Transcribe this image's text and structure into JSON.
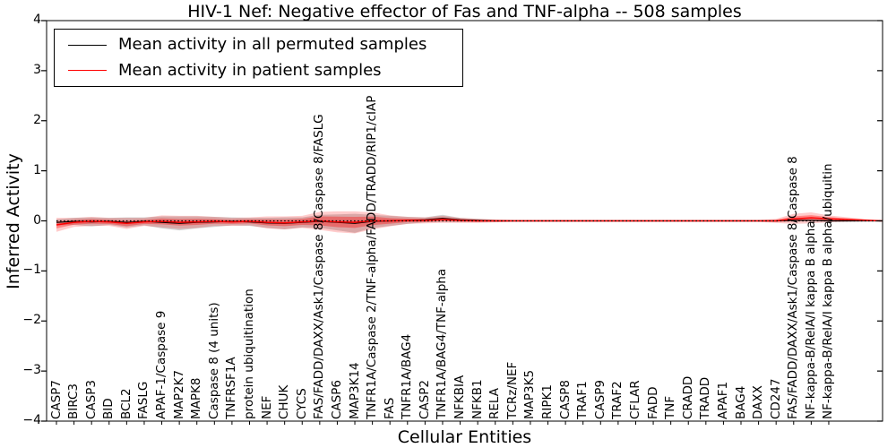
{
  "chart_data": {
    "type": "line",
    "title": "HIV-1 Nef: Negative effector of Fas and TNF-alpha -- 508 samples",
    "xlabel": "Cellular Entities",
    "ylabel": "Inferred Activity",
    "ylim": [
      -4,
      4
    ],
    "yticks": [
      4,
      3,
      2,
      1,
      0,
      -1,
      -2,
      -3,
      -4
    ],
    "grid": false,
    "legend_position": "upper left",
    "zero_line": {
      "y": 0,
      "style": "dotted",
      "color": "#000000"
    },
    "categories": [
      "CASP7",
      "BIRC3",
      "CASP3",
      "BID",
      "BCL2",
      "FASLG",
      "APAF-1/Caspase 9",
      "MAP2K7",
      "MAPK8",
      "Caspase 8 (4 units)",
      "TNFRSF1A",
      "protein ubiquitination",
      "NEF",
      "CHUK",
      "CYCS",
      "FAS/FADD/DAXX/Ask1/Caspase 8/Caspase 8/FASLG",
      "CASP6",
      "MAP3K14",
      "TNFR1A/Caspase 2/TNF-alpha/FADD/TRADD/RIP1/cIAP",
      "FAS",
      "TNFR1A/BAG4",
      "CASP2",
      "TNFR1A/BAG4/TNF-alpha",
      "NFKBIA",
      "NFKB1",
      "RELA",
      "TCRz/NEF",
      "MAP3K5",
      "RIPK1",
      "CASP8",
      "TRAF1",
      "CASP9",
      "TRAF2",
      "CFLAR",
      "FADD",
      "TNF",
      "CRADD",
      "TRADD",
      "APAF1",
      "BAG4",
      "DAXX",
      "CD247",
      "FAS/FADD/DAXX/Ask1/Caspase 8/Caspase 8",
      "NF-kappa-B/RelA/I kappa B alpha",
      "NF-kappa-B/RelA/I kappa B alpha/ubiquitin"
    ],
    "series": [
      {
        "name": "Mean activity in all permuted samples",
        "color": "#000000",
        "band_color": "rgba(0,0,0,0.18)",
        "values": [
          -0.03,
          -0.01,
          -0.02,
          -0.01,
          -0.03,
          -0.01,
          -0.03,
          -0.05,
          -0.03,
          -0.02,
          -0.01,
          -0.02,
          -0.04,
          -0.05,
          -0.03,
          -0.01,
          -0.03,
          -0.05,
          -0.01,
          0,
          0.01,
          0.02,
          0.05,
          0.02,
          0.01,
          0,
          0,
          0,
          0,
          0,
          0,
          0,
          0,
          0,
          0,
          0,
          0,
          0,
          0,
          0,
          0,
          0,
          0.01,
          0.01,
          0
        ],
        "band": [
          0.06,
          0.07,
          0.09,
          0.07,
          0.1,
          0.08,
          0.12,
          0.14,
          0.12,
          0.1,
          0.08,
          0.08,
          0.1,
          0.12,
          0.1,
          0.13,
          0.16,
          0.19,
          0.13,
          0.1,
          0.07,
          0.05,
          0.07,
          0.04,
          0.03,
          0.02,
          0.01,
          0.01,
          0.01,
          0.01,
          0.01,
          0.01,
          0.01,
          0.01,
          0.01,
          0.01,
          0.01,
          0.01,
          0.01,
          0.01,
          0.01,
          0.01,
          0.02,
          0.02,
          0.02
        ]
      },
      {
        "name": "Mean activity in patient samples",
        "color": "#ff0000",
        "band_color_outer": "rgba(255,0,0,0.20)",
        "band_color_inner": "rgba(255,0,0,0.35)",
        "values": [
          -0.08,
          -0.03,
          -0.01,
          -0.02,
          -0.05,
          -0.02,
          -0.01,
          -0.03,
          -0.02,
          -0.01,
          -0.02,
          -0.01,
          -0.03,
          -0.04,
          -0.02,
          0,
          -0.02,
          -0.03,
          0,
          0,
          0.01,
          0.01,
          0.03,
          0.01,
          0,
          0,
          0,
          0,
          0,
          0,
          0,
          0,
          0,
          0,
          0,
          0,
          0,
          0,
          0,
          0,
          0,
          0,
          0.04,
          0.06,
          0.04
        ],
        "band": [
          0.14,
          0.09,
          0.09,
          0.08,
          0.11,
          0.08,
          0.12,
          0.13,
          0.12,
          0.09,
          0.08,
          0.08,
          0.12,
          0.13,
          0.12,
          0.18,
          0.21,
          0.22,
          0.17,
          0.11,
          0.07,
          0.06,
          0.07,
          0.05,
          0.04,
          0.03,
          0.02,
          0.02,
          0.02,
          0.02,
          0.02,
          0.02,
          0.02,
          0.02,
          0.02,
          0.02,
          0.02,
          0.02,
          0.02,
          0.02,
          0.02,
          0.04,
          0.1,
          0.11,
          0.07
        ]
      }
    ]
  }
}
